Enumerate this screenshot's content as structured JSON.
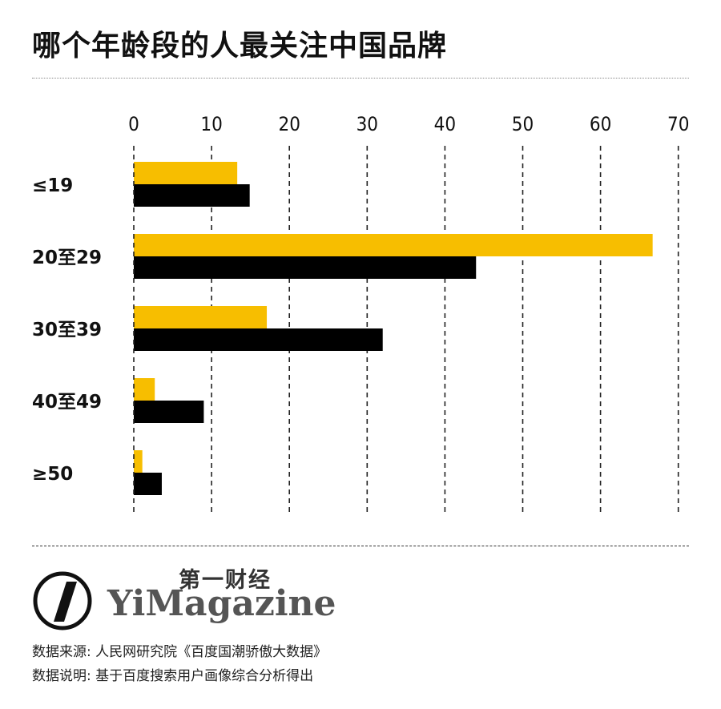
{
  "title": "哪个年龄段的人最关注中国品牌",
  "chart_data": {
    "type": "bar",
    "orientation": "horizontal",
    "categories": [
      "≤19",
      "20至29",
      "30至39",
      "40至49",
      "≥50"
    ],
    "series": [
      {
        "values": [
          13.3,
          66.7,
          17.1,
          2.7,
          1.1
        ]
      },
      {
        "values": [
          14.9,
          44.0,
          32.0,
          9.0,
          3.6
        ]
      }
    ],
    "xlim": [
      0,
      70
    ],
    "xticks": [
      0,
      10,
      20,
      30,
      40,
      50,
      60,
      70
    ],
    "axis_position": "top",
    "grid": true,
    "legend": "none",
    "colors": [
      "#F7BE00",
      "#000000"
    ]
  },
  "brand": {
    "cn": "第一财经",
    "en": "YiMagazine"
  },
  "notes": {
    "source": "数据来源: 人民网研究院《百度国潮骄傲大数据》",
    "method": "数据说明: 基于百度搜索用户画像综合分析得出"
  }
}
